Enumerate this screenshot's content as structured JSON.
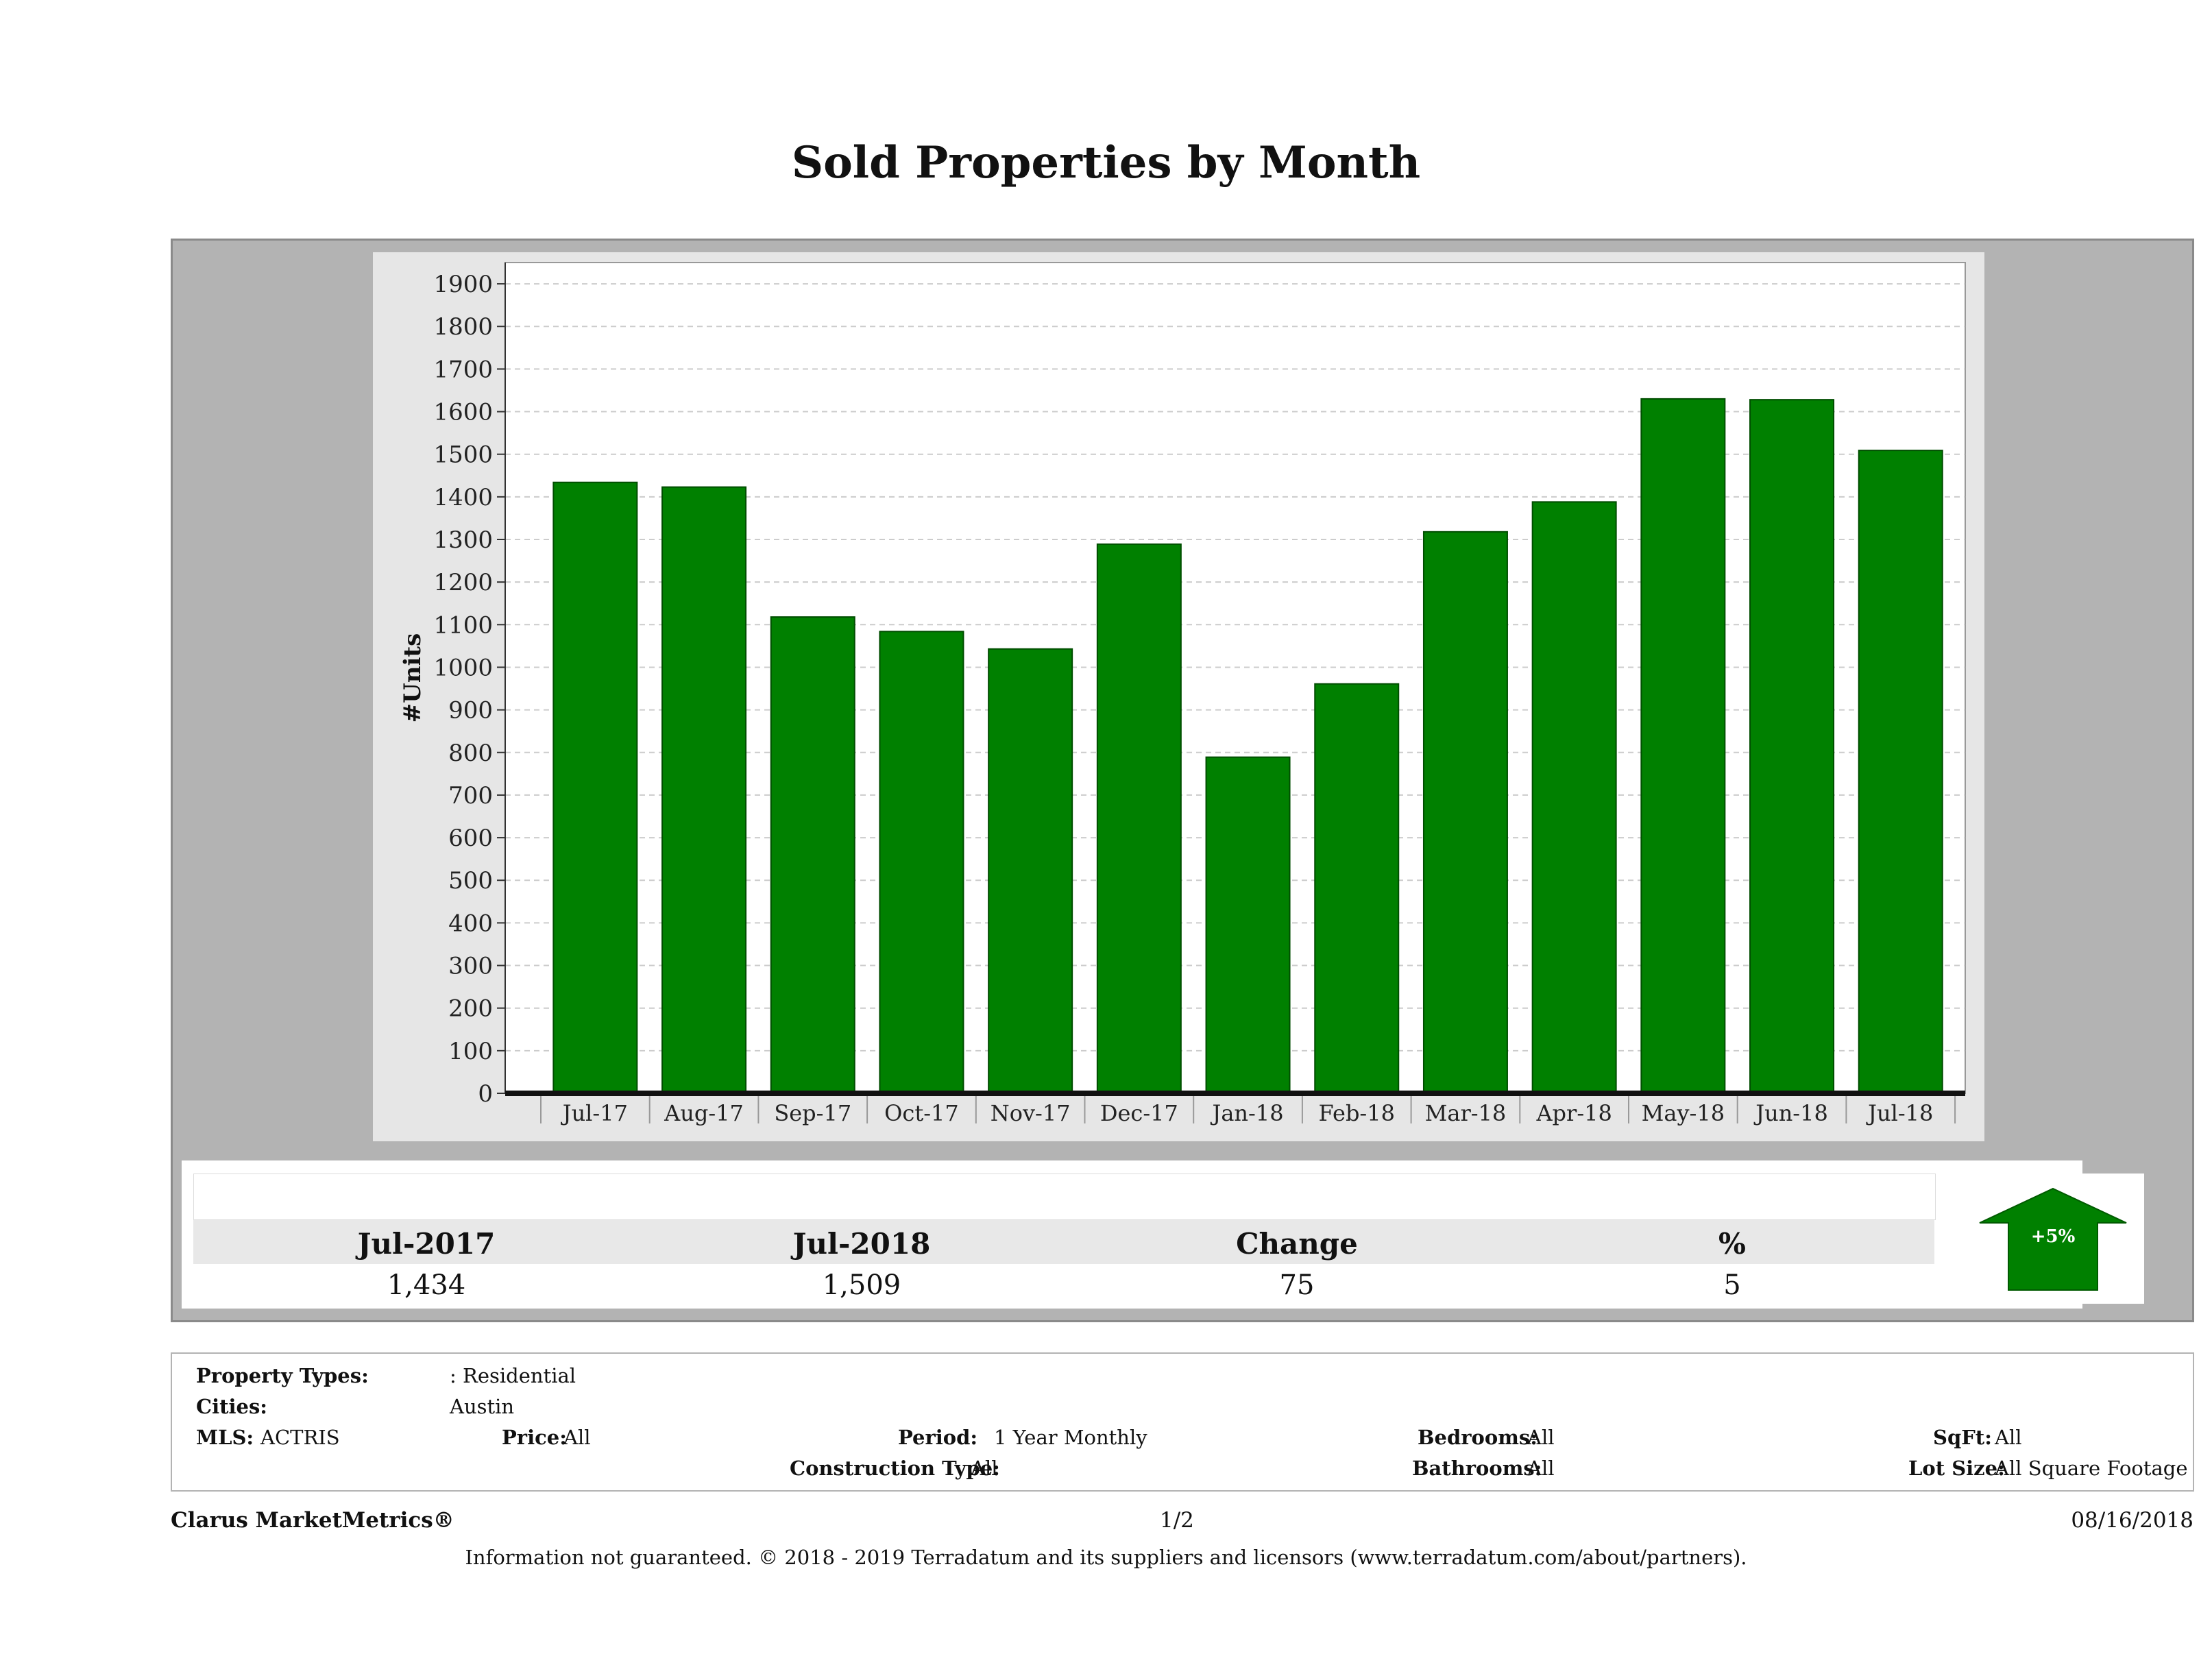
{
  "title": "Sold Properties by Month",
  "chart_data": {
    "type": "bar",
    "title": "Sold Properties by Month",
    "xlabel": "",
    "ylabel": "#Units",
    "categories": [
      "Jul-17",
      "Aug-17",
      "Sep-17",
      "Oct-17",
      "Nov-17",
      "Dec-17",
      "Jan-18",
      "Feb-18",
      "Mar-18",
      "Apr-18",
      "May-18",
      "Jun-18",
      "Jul-18"
    ],
    "values": [
      1434,
      1423,
      1118,
      1084,
      1043,
      1289,
      789,
      961,
      1318,
      1388,
      1630,
      1628,
      1509
    ],
    "ylim": [
      0,
      1950
    ],
    "yticks": [
      0,
      100,
      200,
      300,
      400,
      500,
      600,
      700,
      800,
      900,
      1000,
      1100,
      1200,
      1300,
      1400,
      1500,
      1600,
      1700,
      1800,
      1900
    ],
    "grid": true,
    "colors": {
      "bar": "#008000",
      "bar_edge": "#004d00",
      "panel": "#b3b3b3",
      "frame": "#e6e6e6"
    }
  },
  "summary": {
    "headers": [
      "Jul-2017",
      "Jul-2018",
      "Change",
      "%"
    ],
    "values": [
      "1,434",
      "1,509",
      "75",
      "5"
    ],
    "badge": "+5%",
    "badge_icon": "up-arrow-icon",
    "badge_color": "#008000"
  },
  "meta": {
    "property_types_label": "Property Types:",
    "property_types_value": ": Residential",
    "cities_label": "Cities:",
    "cities_value": "Austin",
    "mls_label": "MLS:",
    "mls_value": "ACTRIS",
    "price_label": "Price:",
    "price_value": "All",
    "period_label": "Period:",
    "period_value": "1 Year Monthly",
    "construction_label": "Construction Type:",
    "construction_value": "All",
    "bedrooms_label": "Bedrooms:",
    "bedrooms_value": "All",
    "bathrooms_label": "Bathrooms:",
    "bathrooms_value": "All",
    "sqft_label": "SqFt:",
    "sqft_value": "All",
    "lotsize_label": "Lot Size:",
    "lotsize_value": "All Square Footage"
  },
  "footer": {
    "brand": "Clarus MarketMetrics®",
    "page": "1/2",
    "date": "08/16/2018",
    "disclaimer": "Information not guaranteed. © 2018 - 2019 Terradatum and its suppliers and licensors (www.terradatum.com/about/partners)."
  }
}
